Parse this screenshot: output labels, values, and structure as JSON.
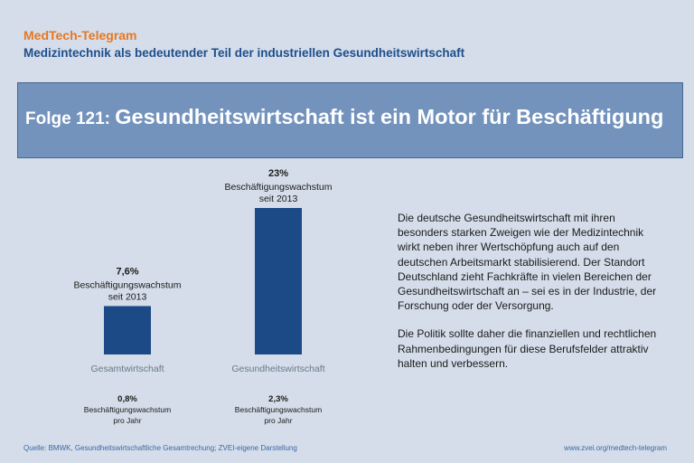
{
  "header": {
    "brand": "MedTech-Telegram",
    "subtitle": "Medizintechnik als bedeutender Teil der industriellen Gesundheitswirtschaft"
  },
  "banner": {
    "prefix": "Folge 121: ",
    "title": "Gesundheitswirtschaft ist ein Motor für Beschäftigung"
  },
  "chart_data": {
    "type": "bar",
    "categories": [
      "Gesamtwirtschaft",
      "Gesundheitswirtschaft"
    ],
    "values": [
      7.6,
      23
    ],
    "value_labels": [
      "7,6%",
      "23%"
    ],
    "label_caption": [
      "Beschäftigungswachstum",
      "seit 2013"
    ],
    "annual_values": [
      0.8,
      2.3
    ],
    "annual_labels": [
      "0,8%",
      "2,3%"
    ],
    "annual_caption": [
      "Beschäftigungswachstum",
      "pro Jahr"
    ],
    "ylim": [
      0,
      23
    ],
    "grid": false,
    "bar_color": "#1c4a86"
  },
  "description": {
    "paragraph1": "Die deutsche Gesundheitswirtschaft mit ihren besonders starken Zweigen wie der Medizintechnik wirkt neben ihrer Wertschöpfung auch auf den deutschen Arbeitsmarkt stabilisierend. Der Standort Deutschland zieht Fachkräfte in vielen Bereichen der Gesundheitswirtschaft an – sei es in der Industrie, der Forschung oder der Versorgung.",
    "paragraph2": "Die Politik sollte daher die finanziellen und rechtlichen Rahmenbedingungen für diese Berufsfelder attraktiv halten und verbessern."
  },
  "footer": {
    "source": "Quelle: BMWK, Gesundheitswirtschaftliche Gesamtrechung; ZVEI-eigene Darstellung",
    "url": "www.zvei.org/medtech-telegram"
  },
  "colors": {
    "background": "#d4dde9",
    "brand": "#e87722",
    "subtitle": "#1f4e8c",
    "banner": "#7393bd",
    "bar": "#1c4a86",
    "footer_text": "#3c68a6"
  }
}
